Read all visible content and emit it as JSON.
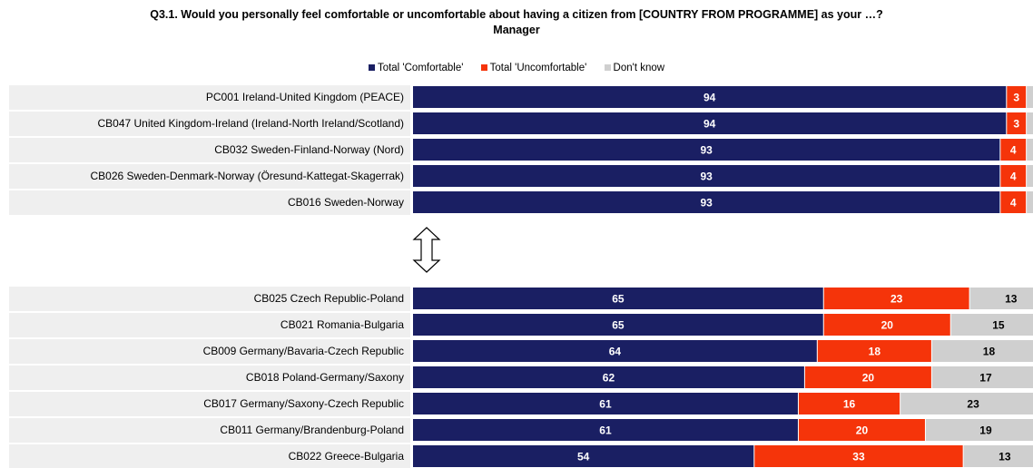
{
  "title_line1": "Q3.1. Would you personally feel comfortable or uncomfortable about having a citizen from [COUNTRY FROM PROGRAMME] as your …?",
  "title_line2": "Manager",
  "colors": {
    "comfortable": "#1a1f63",
    "uncomfortable": "#f5340a",
    "dont_know": "#cfcfcf",
    "label_bg": "#efefef",
    "arrow": "#000000"
  },
  "chart_data": {
    "type": "bar",
    "orientation": "horizontal",
    "stacked": true,
    "xlim": [
      0,
      100
    ],
    "legend": [
      "Total 'Comfortable'",
      "Total 'Uncomfortable'",
      "Don't know"
    ],
    "groups": [
      {
        "categories": [
          "PC001 Ireland-United Kingdom (PEACE)",
          "CB047 United Kingdom-Ireland (Ireland-North Ireland/Scotland)",
          "CB032 Sweden-Finland-Norway (Nord)",
          "CB026 Sweden-Denmark-Norway (Öresund-Kattegat-Skagerrak)",
          "CB016 Sweden-Norway"
        ],
        "series": [
          {
            "name": "Total 'Comfortable'",
            "values": [
              94,
              94,
              93,
              93,
              93
            ]
          },
          {
            "name": "Total 'Uncomfortable'",
            "values": [
              3,
              3,
              4,
              4,
              4
            ]
          },
          {
            "name": "Don't know",
            "values": [
              3,
              3,
              3,
              3,
              3
            ]
          }
        ]
      },
      {
        "categories": [
          "CB025 Czech Republic-Poland",
          "CB021 Romania-Bulgaria",
          "CB009 Germany/Bavaria-Czech Republic",
          "CB018 Poland-Germany/Saxony",
          "CB017 Germany/Saxony-Czech Republic",
          "CB011 Germany/Brandenburg-Poland",
          "CB022 Greece-Bulgaria"
        ],
        "series": [
          {
            "name": "Total 'Comfortable'",
            "values": [
              65,
              65,
              64,
              62,
              61,
              61,
              54
            ]
          },
          {
            "name": "Total 'Uncomfortable'",
            "values": [
              23,
              20,
              18,
              20,
              16,
              20,
              33
            ]
          },
          {
            "name": "Don't know",
            "values": [
              13,
              15,
              18,
              17,
              23,
              19,
              13
            ]
          }
        ]
      }
    ]
  }
}
